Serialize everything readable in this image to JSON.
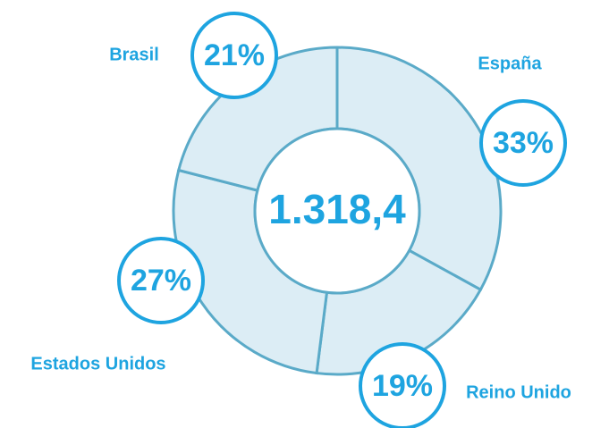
{
  "chart_data": {
    "type": "pie",
    "donut": true,
    "categories": [
      "España",
      "Reino Unido",
      "Estados Unidos",
      "Brasil"
    ],
    "values": [
      33,
      19,
      27,
      21
    ],
    "value_labels": [
      "33%",
      "19%",
      "27%",
      "21%"
    ],
    "center_label": "1.318,4",
    "color": "#dcedf5",
    "edge_color": "#5aaac8",
    "label_color": "#1ea4e0"
  }
}
